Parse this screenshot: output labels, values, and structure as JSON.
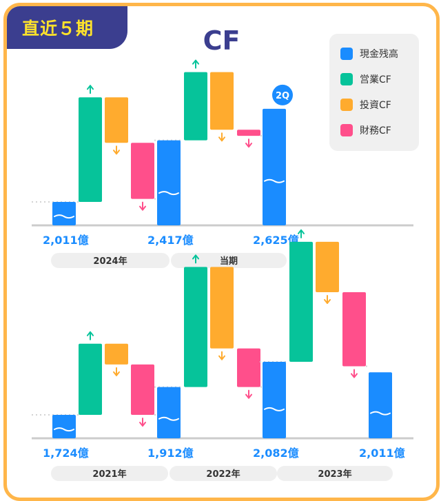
{
  "badge": "直近５期",
  "title": "CF",
  "colors": {
    "cash": "#1a8cff",
    "operating": "#06c39a",
    "investing": "#ffab2e",
    "financing": "#ff4f8b",
    "frame": "#ffb64a",
    "navy": "#3b3e8f",
    "badge_text": "#ffe22b",
    "label_blue": "#1a8cff",
    "axis": "#cccccc",
    "period_bg": "#efefef"
  },
  "legend": [
    {
      "label": "現金残高",
      "color_key": "cash"
    },
    {
      "label": "営業CF",
      "color_key": "operating"
    },
    {
      "label": "投資CF",
      "color_key": "investing"
    },
    {
      "label": "財務CF",
      "color_key": "financing"
    }
  ],
  "chart_data": [
    {
      "type": "bar",
      "subtype": "waterfall",
      "unit": "億",
      "series_names": [
        "現金残高",
        "営業CF",
        "投資CF",
        "財務CF"
      ],
      "periods": [
        {
          "label": "2024年",
          "start_balance": 2011,
          "start_label": "2,011億",
          "operating": 690,
          "investing": -300,
          "financing": -370
        },
        {
          "label": "当期",
          "badge": "2Q",
          "start_balance": 2417,
          "start_label": "2,417億",
          "operating": 450,
          "investing": -380,
          "financing": -40
        }
      ],
      "end_balance": {
        "value": 2625,
        "label": "2,625億"
      }
    },
    {
      "type": "bar",
      "subtype": "waterfall",
      "unit": "億",
      "series_names": [
        "現金残高",
        "営業CF",
        "投資CF",
        "財務CF"
      ],
      "periods": [
        {
          "label": "2021年",
          "start_balance": 1724,
          "start_label": "1,724億",
          "operating": 480,
          "investing": -140,
          "financing": -340
        },
        {
          "label": "2022年",
          "start_balance": 1912,
          "start_label": "1,912億",
          "operating": 810,
          "investing": -550,
          "financing": -260
        },
        {
          "label": "2023年",
          "start_balance": 2082,
          "start_label": "2,082億",
          "operating": 810,
          "investing": -340,
          "financing": -500
        }
      ],
      "end_balance": {
        "value": 2011,
        "label": "2,011億"
      }
    }
  ]
}
